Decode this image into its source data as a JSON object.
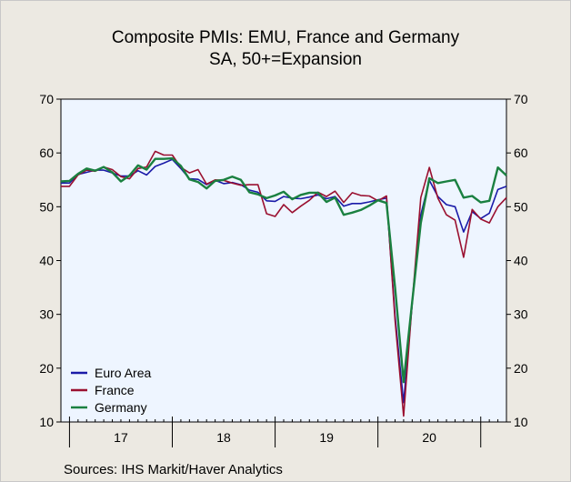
{
  "chart_data": {
    "type": "line",
    "title": "Composite PMIs: EMU, France and Germany",
    "subtitle": "SA, 50+=Expansion",
    "source": "Sources:   IHS Markit/Haver Analytics",
    "ylim": [
      10,
      70
    ],
    "yticks": [
      10,
      20,
      30,
      40,
      50,
      60,
      70
    ],
    "xlim": [
      "2016-12",
      "2021-04"
    ],
    "year_labels": [
      "17",
      "18",
      "19",
      "20"
    ],
    "legend_position": "bottom-left",
    "grid": false,
    "x": [
      "2016-12",
      "2017-01",
      "2017-02",
      "2017-03",
      "2017-04",
      "2017-05",
      "2017-06",
      "2017-07",
      "2017-08",
      "2017-09",
      "2017-10",
      "2017-11",
      "2017-12",
      "2018-01",
      "2018-02",
      "2018-03",
      "2018-04",
      "2018-05",
      "2018-06",
      "2018-07",
      "2018-08",
      "2018-09",
      "2018-10",
      "2018-11",
      "2018-12",
      "2019-01",
      "2019-02",
      "2019-03",
      "2019-04",
      "2019-05",
      "2019-06",
      "2019-07",
      "2019-08",
      "2019-09",
      "2019-10",
      "2019-11",
      "2019-12",
      "2020-01",
      "2020-02",
      "2020-03",
      "2020-04",
      "2020-05",
      "2020-06",
      "2020-07",
      "2020-08",
      "2020-09",
      "2020-10",
      "2020-11",
      "2020-12",
      "2021-01",
      "2021-02",
      "2021-03",
      "2021-04"
    ],
    "series": [
      {
        "name": "Euro Area",
        "color": "#1a1aa8",
        "values": [
          54.4,
          54.4,
          56.0,
          56.4,
          56.8,
          56.8,
          56.3,
          55.7,
          55.7,
          56.7,
          55.9,
          57.5,
          58.1,
          58.8,
          57.1,
          55.2,
          55.1,
          54.1,
          54.9,
          54.3,
          54.5,
          54.1,
          53.1,
          52.7,
          51.1,
          51.0,
          51.9,
          51.6,
          51.5,
          51.8,
          52.2,
          51.5,
          51.9,
          50.1,
          50.6,
          50.6,
          50.9,
          51.3,
          51.6,
          29.7,
          13.6,
          31.9,
          48.5,
          54.9,
          51.9,
          50.4,
          50.0,
          45.3,
          49.1,
          47.8,
          48.8,
          53.2,
          53.8
        ]
      },
      {
        "name": "France",
        "color": "#9a1030",
        "values": [
          53.8,
          53.8,
          55.9,
          56.8,
          56.6,
          57.4,
          56.9,
          55.6,
          55.2,
          57.1,
          57.4,
          60.3,
          59.6,
          59.6,
          57.3,
          56.3,
          56.9,
          54.2,
          55.0,
          54.9,
          54.4,
          54.0,
          54.1,
          54.1,
          48.7,
          48.2,
          50.4,
          48.9,
          50.1,
          51.2,
          52.7,
          51.9,
          52.9,
          50.8,
          52.6,
          52.1,
          52.0,
          51.1,
          52.0,
          28.9,
          11.1,
          32.1,
          51.7,
          57.3,
          51.6,
          48.5,
          47.5,
          40.6,
          49.5,
          47.7,
          47.0,
          50.0,
          51.7
        ]
      },
      {
        "name": "Germany",
        "color": "#1a8040",
        "values": [
          54.7,
          54.8,
          56.1,
          57.1,
          56.7,
          57.4,
          56.4,
          54.7,
          55.8,
          57.7,
          56.9,
          58.9,
          58.9,
          59.0,
          57.6,
          55.1,
          54.6,
          53.4,
          54.8,
          55.0,
          55.6,
          55.0,
          52.7,
          52.3,
          51.6,
          52.1,
          52.8,
          51.4,
          52.2,
          52.6,
          52.6,
          50.9,
          51.7,
          48.5,
          48.9,
          49.4,
          50.2,
          51.2,
          50.7,
          35.0,
          17.4,
          32.3,
          47.0,
          55.3,
          54.4,
          54.7,
          55.0,
          51.7,
          52.0,
          50.8,
          51.1,
          57.3,
          55.8
        ]
      }
    ]
  }
}
